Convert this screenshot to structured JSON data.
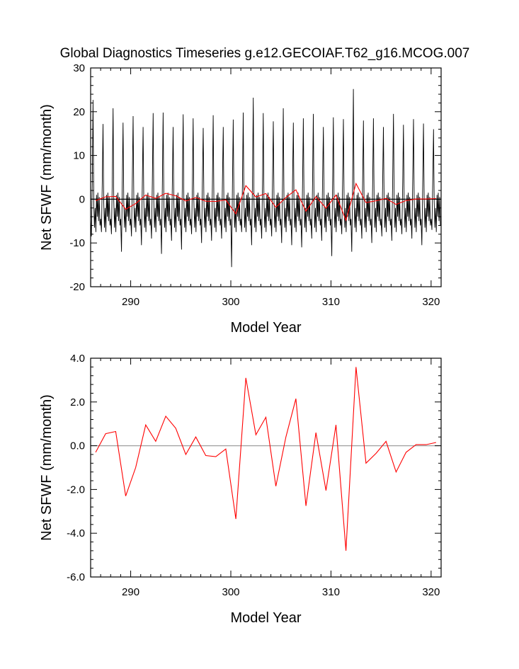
{
  "title": "Global Diagnostics Timeseries g.e12.GECOIAF.T62_g16.MCOG.007",
  "colors": {
    "monthly": "#000000",
    "annual": "#ff0000",
    "zero_line": "#a0a0a0"
  },
  "chart_data": [
    {
      "type": "line",
      "xlabel": "Model Year",
      "ylabel": "Net SFWF (mm/month)",
      "xlim": [
        286,
        321
      ],
      "ylim": [
        -20,
        30
      ],
      "xticks": [
        290,
        300,
        310,
        320
      ],
      "xtick_labels": [
        "290",
        "300",
        "310",
        "320"
      ],
      "yticks": [
        -20,
        -10,
        0,
        10,
        20,
        30
      ],
      "ytick_labels": [
        "-20",
        "-10",
        "0",
        "10",
        "20",
        "30"
      ],
      "reference_line": 0,
      "series": [
        {
          "id": "monthly",
          "description_color": "black",
          "peaks": [
            22.7,
            17.2,
            20.8,
            17.5,
            19.0,
            16.5,
            19.7,
            19.8,
            16.5,
            19.4,
            18.5,
            16.3,
            19.2,
            16.5,
            18.2,
            19.8,
            23.2,
            19.7,
            17.8,
            20.8,
            17.5,
            18.5,
            19.5,
            16.5,
            18.7,
            18.3,
            25.2,
            18.0,
            18.5,
            16.5,
            19.5,
            17.0,
            18.3,
            17.3,
            16.0
          ],
          "troughs": [
            -8.5,
            -7.5,
            -8.0,
            -12.0,
            -8.5,
            -10.5,
            -9.0,
            -12.5,
            -9.5,
            -11.5,
            -8.0,
            -10.0,
            -9.5,
            -9.0,
            -15.5,
            -7.5,
            -10.5,
            -9.0,
            -8.5,
            -10.0,
            -10.5,
            -11.0,
            -9.0,
            -9.5,
            -13.0,
            -8.0,
            -12.0,
            -9.0,
            -10.0,
            -8.5,
            -9.5,
            -8.0,
            -9.0,
            -10.5,
            -7.0
          ]
        },
        {
          "id": "annual",
          "description_color": "red",
          "x": [
            286.5,
            287.5,
            288.5,
            289.5,
            290.5,
            291.5,
            292.5,
            293.5,
            294.5,
            295.5,
            296.5,
            297.5,
            298.5,
            299.5,
            300.5,
            301.5,
            302.5,
            303.5,
            304.5,
            305.5,
            306.5,
            307.5,
            308.5,
            309.5,
            310.5,
            311.5,
            312.5,
            313.5,
            314.5,
            315.5,
            316.5,
            317.5,
            318.5,
            319.5,
            320.5
          ],
          "y": [
            -0.3,
            0.55,
            0.65,
            -2.3,
            -1.0,
            0.95,
            0.2,
            1.35,
            0.8,
            -0.4,
            0.4,
            -0.45,
            -0.5,
            -0.15,
            -3.35,
            3.1,
            0.5,
            1.3,
            -1.85,
            0.4,
            2.15,
            -2.75,
            0.6,
            -2.05,
            0.95,
            -4.8,
            3.6,
            -0.8,
            -0.35,
            0.2,
            -1.2,
            -0.3,
            0.05,
            0.05,
            0.15
          ]
        }
      ]
    },
    {
      "type": "line",
      "xlabel": "Model Year",
      "ylabel": "Net SFWF (mm/month)",
      "xlim": [
        286,
        321
      ],
      "ylim": [
        -6,
        4
      ],
      "xticks": [
        290,
        300,
        310,
        320
      ],
      "xtick_labels": [
        "290",
        "300",
        "310",
        "320"
      ],
      "yticks": [
        -6,
        -4,
        -2,
        0,
        2,
        4
      ],
      "ytick_labels": [
        "-6.0",
        "-4.0",
        "-2.0",
        "0.0",
        "2.0",
        "4.0"
      ],
      "reference_line": 0,
      "series": [
        {
          "id": "annual",
          "description_color": "red",
          "x": [
            286.5,
            287.5,
            288.5,
            289.5,
            290.5,
            291.5,
            292.5,
            293.5,
            294.5,
            295.5,
            296.5,
            297.5,
            298.5,
            299.5,
            300.5,
            301.5,
            302.5,
            303.5,
            304.5,
            305.5,
            306.5,
            307.5,
            308.5,
            309.5,
            310.5,
            311.5,
            312.5,
            313.5,
            314.5,
            315.5,
            316.5,
            317.5,
            318.5,
            319.5,
            320.5
          ],
          "y": [
            -0.3,
            0.55,
            0.65,
            -2.3,
            -1.0,
            0.95,
            0.2,
            1.35,
            0.8,
            -0.4,
            0.4,
            -0.45,
            -0.5,
            -0.15,
            -3.35,
            3.1,
            0.5,
            1.3,
            -1.85,
            0.4,
            2.15,
            -2.75,
            0.6,
            -2.05,
            0.95,
            -4.8,
            3.6,
            -0.8,
            -0.35,
            0.2,
            -1.2,
            -0.3,
            0.05,
            0.05,
            0.15
          ]
        }
      ]
    }
  ]
}
